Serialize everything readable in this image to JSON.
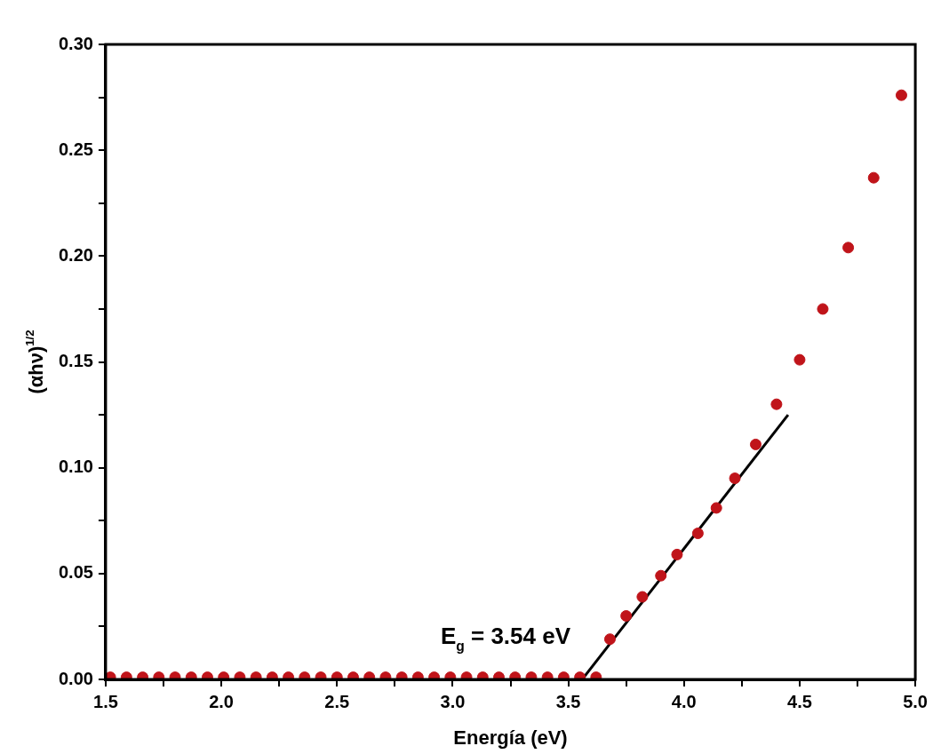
{
  "chart_data": {
    "type": "scatter",
    "xlabel": "Energía (eV)",
    "ylabel": "(αhν)$^{1/2}$",
    "xlim": [
      1.5,
      5.0
    ],
    "ylim": [
      0,
      0.3
    ],
    "xticks": [
      1.5,
      {
        "value": 1.75,
        "label": null
      },
      {
        "value": 2,
        "label": "2.0"
      },
      {
        "value": 2.25,
        "label": null
      },
      2.5,
      {
        "value": 2.75,
        "label": null
      },
      {
        "value": 3,
        "label": "3.0"
      },
      {
        "value": 3.25,
        "label": null
      },
      3.5,
      {
        "value": 3.75,
        "label": null
      },
      {
        "value": 4,
        "label": "4.0"
      },
      {
        "value": 4.25,
        "label": null
      },
      4.5,
      {
        "value": 4.75,
        "label": null
      },
      {
        "value": 5,
        "label": "5.0"
      }
    ],
    "yticks": [
      {
        "value": 0,
        "label": "0.00"
      },
      {
        "value": 0.025,
        "label": null
      },
      {
        "value": 0.05,
        "label": "0.05"
      },
      {
        "value": 0.075,
        "label": null
      },
      {
        "value": 0.1,
        "label": "0.10"
      },
      {
        "value": 0.125,
        "label": null
      },
      {
        "value": 0.15,
        "label": "0.15"
      },
      {
        "value": 0.175,
        "label": null
      },
      {
        "value": 0.2,
        "label": "0.20"
      },
      {
        "value": 0.225,
        "label": null
      },
      {
        "value": 0.25,
        "label": "0.25"
      },
      {
        "value": 0.275,
        "label": null
      },
      {
        "value": 0.3,
        "label": "0.30"
      }
    ],
    "grid": false,
    "legend": false,
    "marker": "circle",
    "series": [
      {
        "type": "scatter",
        "color": "#c0141a",
        "x": [
          1.52,
          1.59,
          1.66,
          1.73,
          1.8,
          1.87,
          1.94,
          2.01,
          2.08,
          2.15,
          2.22,
          2.29,
          2.36,
          2.43,
          2.5,
          2.57,
          2.64,
          2.71,
          2.78,
          2.85,
          2.92,
          2.99,
          3.06,
          3.13,
          3.2,
          3.27,
          3.34,
          3.41,
          3.48,
          3.55,
          3.62,
          3.68,
          3.75,
          3.82,
          3.9,
          3.97,
          4.06,
          4.14,
          4.22,
          4.31,
          4.4,
          4.5,
          4.6,
          4.71,
          4.82,
          4.94
        ],
        "values": [
          0.001,
          0.001,
          0.001,
          0.001,
          0.001,
          0.001,
          0.001,
          0.001,
          0.001,
          0.001,
          0.001,
          0.001,
          0.001,
          0.001,
          0.001,
          0.001,
          0.001,
          0.001,
          0.001,
          0.001,
          0.001,
          0.001,
          0.001,
          0.001,
          0.001,
          0.001,
          0.001,
          0.001,
          0.001,
          0.001,
          0.001,
          0.019,
          0.03,
          0.039,
          0.049,
          0.059,
          0.069,
          0.081,
          0.095,
          0.111,
          0.13,
          0.151,
          0.175,
          0.204,
          0.237,
          0.276
        ]
      },
      {
        "type": "line",
        "color": "#000000",
        "marker": "none",
        "line_style": "solid",
        "x": [
          3.56,
          4.45
        ],
        "values": [
          0,
          0.125
        ]
      }
    ],
    "annotations": [
      {
        "text": "E$_{g}$ = 3.54 eV",
        "x": 3.54,
        "y": 0
      }
    ]
  }
}
